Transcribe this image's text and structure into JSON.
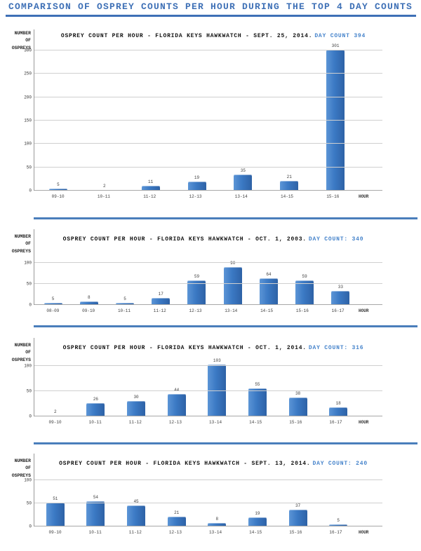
{
  "colors": {
    "accent": "#3E70B6",
    "daycount": "#4583CB",
    "divider": "#4A7EBB",
    "bar_fill": "#3B79C4",
    "bar_edge": "#2E62A6"
  },
  "header": {
    "title": "COMPARISON OF OSPREY COUNTS PER HOUR DURING THE TOP 4 DAY COUNTS"
  },
  "chart_data": [
    {
      "type": "bar",
      "title_black": "OSPREY COUNT PER HOUR - FLORIDA KEYS HAWKWATCH - SEPT. 25, 2014.",
      "title_blue": "DAY COUNT 394",
      "day_count": 394,
      "ylabel": "NUMBER\nOF\nOSPREYS",
      "xlabel": "HOUR",
      "categories": [
        "09-10",
        "10-11",
        "11-12",
        "12-13",
        "13-14",
        "14-15",
        "15-16"
      ],
      "values": [
        5,
        2,
        11,
        19,
        35,
        21,
        301
      ],
      "ylim": [
        0,
        300
      ],
      "yticks": [
        0,
        50,
        100,
        150,
        200,
        250,
        300
      ],
      "grid": true,
      "legend": false
    },
    {
      "type": "bar",
      "title_black": "OSPREY COUNT PER HOUR - FLORIDA KEYS HAWKWATCH - OCT. 1, 2003.",
      "title_blue": "DAY COUNT: 340",
      "day_count": 340,
      "ylabel": "NUMBER\nOF\nOSPREYS",
      "xlabel": "HOUR",
      "categories": [
        "08-09",
        "09-10",
        "10-11",
        "11-12",
        "12-13",
        "13-14",
        "14-15",
        "15-16",
        "16-17"
      ],
      "values": [
        5,
        8,
        5,
        17,
        59,
        90,
        64,
        59,
        33
      ],
      "ylim": [
        0,
        100
      ],
      "yticks": [
        0,
        50,
        100
      ],
      "grid": true,
      "legend": false
    },
    {
      "type": "bar",
      "title_black": "OSPREY COUNT PER HOUR - FLORIDA KEYS HAWKWATCH - OCT. 1, 2014.",
      "title_blue": "DAY COUNT: 316",
      "day_count": 316,
      "ylabel": "NUMBER\nOF\nOSPREYS",
      "xlabel": "HOUR",
      "categories": [
        "09-10",
        "10-11",
        "11-12",
        "12-13",
        "13-14",
        "14-15",
        "15-16",
        "16-17"
      ],
      "values": [
        2,
        26,
        30,
        44,
        103,
        55,
        38,
        18
      ],
      "ylim": [
        0,
        100
      ],
      "yticks": [
        0,
        50,
        100
      ],
      "grid": true,
      "legend": false
    },
    {
      "type": "bar",
      "title_black": "OSPREY COUNT PER HOUR - FLORIDA KEYS HAWKWATCH - SEPT. 13, 2014.",
      "title_blue": "DAY COUNT: 240",
      "day_count": 240,
      "ylabel": "NUMBER\nOF\nOSPREYS",
      "xlabel": "HOUR",
      "categories": [
        "09-10",
        "10-11",
        "11-12",
        "12-13",
        "13-14",
        "14-15",
        "15-16",
        "16-17"
      ],
      "values": [
        51,
        54,
        45,
        21,
        8,
        19,
        37,
        5
      ],
      "ylim": [
        0,
        100
      ],
      "yticks": [
        0,
        50,
        100
      ],
      "grid": true,
      "legend": false
    }
  ]
}
